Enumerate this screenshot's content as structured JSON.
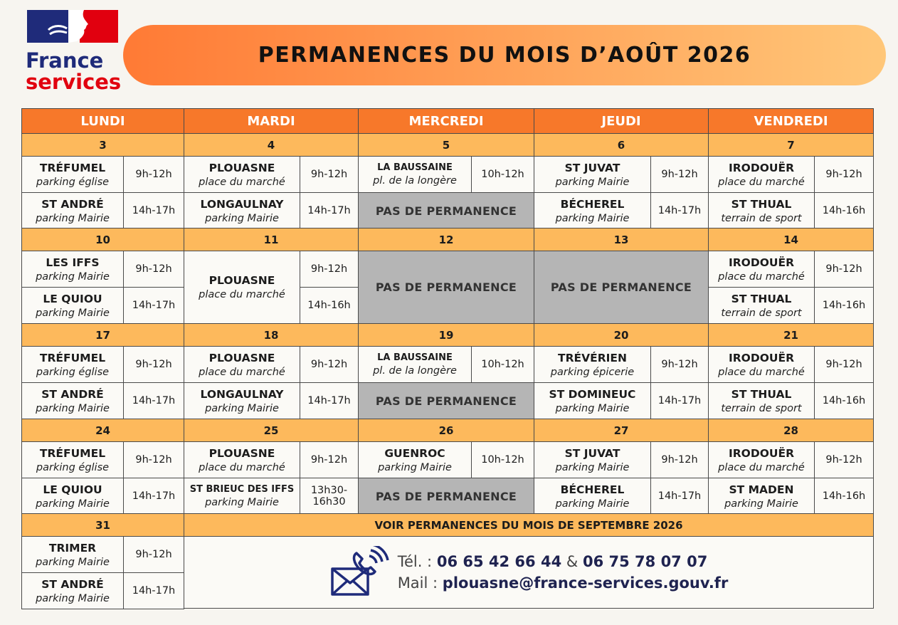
{
  "logo": {
    "line1": "France",
    "line2": "services"
  },
  "title": "PERMANENCES DU MOIS D’AOÛT 2026",
  "days": [
    "LUNDI",
    "MARDI",
    "MERCREDI",
    "JEUDI",
    "VENDREDI"
  ],
  "weeks": [
    {
      "dates": [
        3,
        4,
        5,
        6,
        7
      ],
      "days": [
        {
          "slots": [
            {
              "place": "TRÉFUMEL",
              "detail": "parking église",
              "hours": "9h-12h"
            },
            {
              "place": "ST ANDRÉ",
              "detail": "parking Mairie",
              "hours": "14h-17h"
            }
          ]
        },
        {
          "slots": [
            {
              "place": "PLOUASNE",
              "detail": "place du marché",
              "hours": "9h-12h"
            },
            {
              "place": "LONGAULNAY",
              "detail": "parking Mairie",
              "hours": "14h-17h"
            }
          ]
        },
        {
          "slots": [
            {
              "place": "LA BAUSSAINE",
              "detail": "pl. de la longère",
              "hours": "10h-12h"
            },
            {
              "none": "PAS DE PERMANENCE"
            }
          ]
        },
        {
          "slots": [
            {
              "place": "ST JUVAT",
              "detail": "parking Mairie",
              "hours": "9h-12h"
            },
            {
              "place": "BÉCHEREL",
              "detail": "parking Mairie",
              "hours": "14h-17h"
            }
          ]
        },
        {
          "slots": [
            {
              "place": "IRODOUËR",
              "detail": "place du marché",
              "hours": "9h-12h"
            },
            {
              "place": "ST THUAL",
              "detail": "terrain de sport",
              "hours": "14h-16h"
            }
          ]
        }
      ]
    },
    {
      "dates": [
        10,
        11,
        12,
        13,
        14
      ],
      "days": [
        {
          "slots": [
            {
              "place": "LES IFFS",
              "detail": "parking Mairie",
              "hours": "9h-12h"
            },
            {
              "place": "LE QUIOU",
              "detail": "parking Mairie",
              "hours": "14h-17h"
            }
          ]
        },
        {
          "place": "PLOUASNE",
          "detail": "place du marché",
          "hours": [
            "9h-12h",
            "14h-16h"
          ]
        },
        {
          "none": "PAS DE PERMANENCE"
        },
        {
          "none": "PAS DE PERMANENCE"
        },
        {
          "slots": [
            {
              "place": "IRODOUËR",
              "detail": "place du marché",
              "hours": "9h-12h"
            },
            {
              "place": "ST THUAL",
              "detail": "terrain de sport",
              "hours": "14h-16h"
            }
          ]
        }
      ]
    },
    {
      "dates": [
        17,
        18,
        19,
        20,
        21
      ],
      "days": [
        {
          "slots": [
            {
              "place": "TRÉFUMEL",
              "detail": "parking église",
              "hours": "9h-12h"
            },
            {
              "place": "ST ANDRÉ",
              "detail": "parking Mairie",
              "hours": "14h-17h"
            }
          ]
        },
        {
          "slots": [
            {
              "place": "PLOUASNE",
              "detail": "place du marché",
              "hours": "9h-12h"
            },
            {
              "place": "LONGAULNAY",
              "detail": "parking Mairie",
              "hours": "14h-17h"
            }
          ]
        },
        {
          "slots": [
            {
              "place": "LA BAUSSAINE",
              "detail": "pl. de la longère",
              "hours": "10h-12h"
            },
            {
              "none": "PAS DE PERMANENCE"
            }
          ]
        },
        {
          "slots": [
            {
              "place": "TRÉVÉRIEN",
              "detail": "parking épicerie",
              "hours": "9h-12h"
            },
            {
              "place": "ST DOMINEUC",
              "detail": "parking Mairie",
              "hours": "14h-17h"
            }
          ]
        },
        {
          "slots": [
            {
              "place": "IRODOUËR",
              "detail": "place du marché",
              "hours": "9h-12h"
            },
            {
              "place": "ST THUAL",
              "detail": "terrain de sport",
              "hours": "14h-16h"
            }
          ]
        }
      ]
    },
    {
      "dates": [
        24,
        25,
        26,
        27,
        28
      ],
      "days": [
        {
          "slots": [
            {
              "place": "TRÉFUMEL",
              "detail": "parking église",
              "hours": "9h-12h"
            },
            {
              "place": "LE QUIOU",
              "detail": "parking Mairie",
              "hours": "14h-17h"
            }
          ]
        },
        {
          "slots": [
            {
              "place": "PLOUASNE",
              "detail": "place du marché",
              "hours": "9h-12h"
            },
            {
              "place": "ST BRIEUC DES IFFS",
              "detail": "parking Mairie",
              "hours": "13h30-16h30"
            }
          ]
        },
        {
          "slots": [
            {
              "place": "GUENROC",
              "detail": "parking Mairie",
              "hours": "10h-12h"
            },
            {
              "none": "PAS DE PERMANENCE"
            }
          ]
        },
        {
          "slots": [
            {
              "place": "ST JUVAT",
              "detail": "parking Mairie",
              "hours": "9h-12h"
            },
            {
              "place": "BÉCHEREL",
              "detail": "parking Mairie",
              "hours": "14h-17h"
            }
          ]
        },
        {
          "slots": [
            {
              "place": "IRODOUËR",
              "detail": "place du marché",
              "hours": "9h-12h"
            },
            {
              "place": "ST MADEN",
              "detail": "parking Mairie",
              "hours": "14h-16h"
            }
          ]
        }
      ]
    },
    {
      "dates": [
        31
      ],
      "days": [
        {
          "slots": [
            {
              "place": "TRIMER",
              "detail": "parking Mairie",
              "hours": "9h-12h"
            },
            {
              "place": "ST ANDRÉ",
              "detail": "parking Mairie",
              "hours": "14h-17h"
            }
          ]
        }
      ],
      "notice": "VOIR PERMANENCES DU MOIS DE SEPTEMBRE 2026"
    }
  ],
  "contact": {
    "tel_label": "Tél. :",
    "phone1": "06 65 42 66 44",
    "and": "&",
    "phone2": "06 75 78 07 07",
    "mail_label": "Mail :",
    "email": "plouasne@france-services.gouv.fr"
  }
}
